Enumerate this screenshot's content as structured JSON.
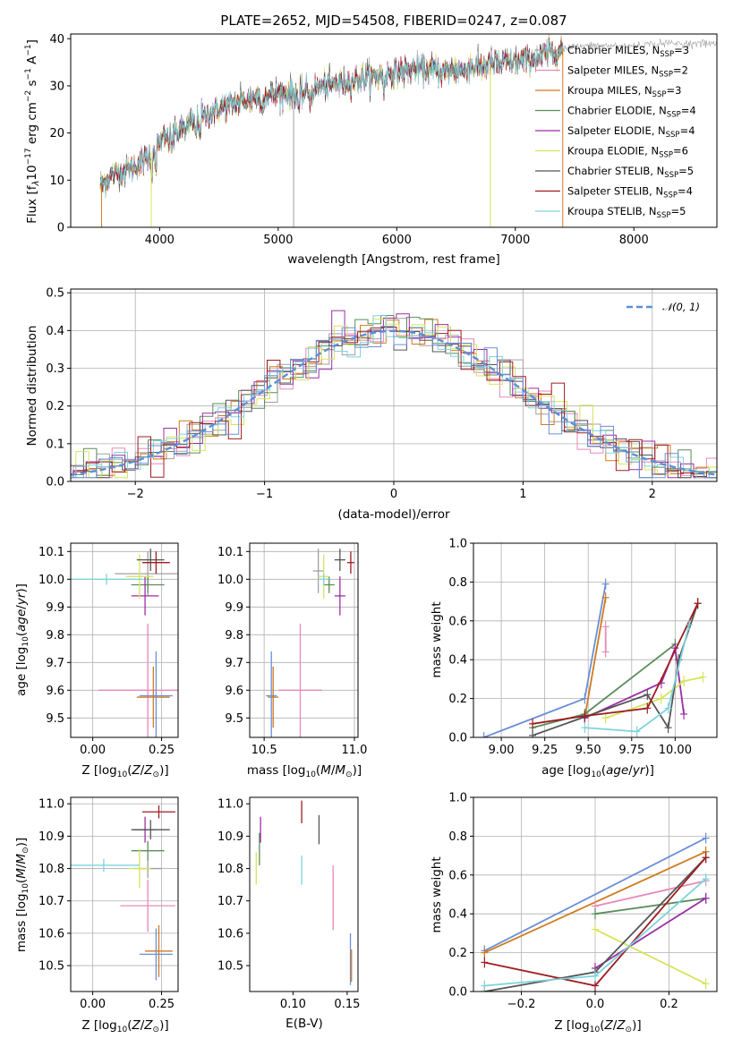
{
  "chart_data": [
    {
      "id": "spectrum",
      "type": "line",
      "title": "PLATE=2652, MJD=54508, FIBERID=0247, z=0.087",
      "xlabel": "wavelength [Angstrom, rest frame]",
      "ylabel": "Flux [f_λ10^-17 erg cm^-2 s^-1 A^-1]",
      "xlim": [
        3250,
        8700
      ],
      "ylim": [
        0,
        41
      ],
      "xticks": [
        4000,
        5000,
        6000,
        7000,
        8000
      ],
      "yticks": [
        0,
        10,
        20,
        30,
        40
      ],
      "grid": false,
      "legend_position": "top-right",
      "series": [
        {
          "name": "Chabrier MILES, N_SSP=3",
          "color": "#a0a0a0"
        },
        {
          "name": "Salpeter MILES, N_SSP=2",
          "color": "#e889b9"
        },
        {
          "name": "Kroupa MILES, N_SSP=3",
          "color": "#d07a1e"
        },
        {
          "name": "Chabrier ELODIE, N_SSP=4",
          "color": "#5b8c5b"
        },
        {
          "name": "Salpeter ELODIE, N_SSP=4",
          "color": "#9b2ea6"
        },
        {
          "name": "Kroupa ELODIE, N_SSP=6",
          "color": "#d5e45a"
        },
        {
          "name": "Chabrier STELIB, N_SSP=5",
          "color": "#555555"
        },
        {
          "name": "Salpeter STELIB, N_SSP=4",
          "color": "#a01c20"
        },
        {
          "name": "Kroupa STELIB, N_SSP=5",
          "color": "#7dd3dc"
        }
      ],
      "continuum_x": [
        3500,
        3600,
        3700,
        3800,
        3900,
        4000,
        4200,
        4400,
        4600,
        4800,
        5000,
        5200,
        5400,
        5600,
        5800,
        6000,
        6200,
        6400,
        6600,
        6800,
        7000,
        7200,
        7400,
        7600,
        7800,
        8000,
        8200,
        8400,
        8700
      ],
      "continuum_y": [
        9,
        11,
        12,
        13,
        15,
        18,
        21,
        24,
        26,
        27.5,
        28.5,
        28.5,
        30,
        31,
        32,
        33,
        33.5,
        33,
        34,
        34.5,
        35,
        36,
        38,
        38.5,
        38.5,
        38.5,
        39,
        39,
        39
      ]
    },
    {
      "id": "residuals",
      "type": "line",
      "xlabel": "(data-model)/error",
      "ylabel": "Normed distribution",
      "xlim": [
        -2.5,
        2.5
      ],
      "ylim": [
        0,
        0.51
      ],
      "xticks": [
        -2,
        -1,
        0,
        1,
        2
      ],
      "xtick_labels": [
        "−2",
        "−1",
        "0",
        "1",
        "2"
      ],
      "yticks": [
        0.0,
        0.1,
        0.2,
        0.3,
        0.4,
        0.5
      ],
      "ytick_labels": [
        "0.0",
        "0.1",
        "0.2",
        "0.3",
        "0.4",
        "0.5"
      ],
      "grid": true,
      "legend_position": "top-right",
      "reference_curve": {
        "name": "𝒩(0, 1)",
        "color": "#5b8fd6",
        "style": "dashed"
      },
      "bin_width": 0.1,
      "series_colors": [
        "#a0a0a0",
        "#e889b9",
        "#d07a1e",
        "#5b8c5b",
        "#9b2ea6",
        "#d5e45a",
        "#555555",
        "#a01c20",
        "#7dd3dc",
        "#6a8fd6"
      ]
    },
    {
      "id": "age-vs-Z",
      "type": "scatter",
      "xlabel": "Z [log10(Z/Z⊙)]",
      "ylabel": "age  [log10(age/yr)]",
      "xlim": [
        -0.08,
        0.31
      ],
      "ylim": [
        9.43,
        10.13
      ],
      "xticks": [
        0.0,
        0.25
      ],
      "xtick_labels": [
        "0.00",
        "0.25"
      ],
      "yticks": [
        9.5,
        9.6,
        9.7,
        9.8,
        9.9,
        10.0,
        10.1
      ],
      "ytick_labels": [
        "9.5",
        "9.6",
        "9.7",
        "9.8",
        "9.9",
        "10.0",
        "10.1"
      ],
      "grid": true,
      "points": [
        {
          "x": 0.2,
          "y": 10.02,
          "xerr": 0.12,
          "yerr": 0.08,
          "color": "#a0a0a0"
        },
        {
          "x": 0.2,
          "y": 9.6,
          "xerr": 0.18,
          "yerr": 0.24,
          "color": "#e889b9"
        },
        {
          "x": 0.22,
          "y": 9.575,
          "xerr": 0.06,
          "yerr": 0.11,
          "color": "#d07a1e"
        },
        {
          "x": 0.2,
          "y": 9.98,
          "xerr": 0.06,
          "yerr": 0.03,
          "color": "#5b8c5b"
        },
        {
          "x": 0.19,
          "y": 9.94,
          "xerr": 0.05,
          "yerr": 0.07,
          "color": "#9b2ea6"
        },
        {
          "x": 0.17,
          "y": 10.01,
          "xerr": 0.05,
          "yerr": 0.08,
          "color": "#d5e45a"
        },
        {
          "x": 0.21,
          "y": 10.07,
          "xerr": 0.05,
          "yerr": 0.04,
          "color": "#555555"
        },
        {
          "x": 0.23,
          "y": 10.06,
          "xerr": 0.05,
          "yerr": 0.04,
          "color": "#a01c20"
        },
        {
          "x": 0.05,
          "y": 10.0,
          "xerr": 0.13,
          "yerr": 0.02,
          "color": "#7dd3dc"
        },
        {
          "x": 0.23,
          "y": 9.58,
          "xerr": 0.06,
          "yerr": 0.16,
          "color": "#6a8fd6"
        }
      ]
    },
    {
      "id": "age-vs-mass",
      "type": "scatter",
      "xlabel": "mass [log10(M/M⊙)]",
      "xlim": [
        10.42,
        11.02
      ],
      "ylim": [
        9.43,
        10.13
      ],
      "xticks": [
        10.5,
        11.0
      ],
      "xtick_labels": [
        "10.5",
        "11.0"
      ],
      "yticks": [
        9.5,
        9.6,
        9.7,
        9.8,
        9.9,
        10.0,
        10.1
      ],
      "ytick_labels": [
        "9.5",
        "9.6",
        "9.7",
        "9.8",
        "9.9",
        "10.0",
        "10.1"
      ],
      "grid": true,
      "points": [
        {
          "x": 10.8,
          "y": 10.03,
          "xerr": 0.03,
          "yerr": 0.08,
          "color": "#a0a0a0"
        },
        {
          "x": 10.7,
          "y": 9.6,
          "xerr": 0.12,
          "yerr": 0.24,
          "color": "#e889b9"
        },
        {
          "x": 10.55,
          "y": 9.575,
          "xerr": 0.03,
          "yerr": 0.11,
          "color": "#d07a1e"
        },
        {
          "x": 10.86,
          "y": 9.98,
          "xerr": 0.03,
          "yerr": 0.03,
          "color": "#5b8c5b"
        },
        {
          "x": 10.92,
          "y": 9.94,
          "xerr": 0.03,
          "yerr": 0.07,
          "color": "#9b2ea6"
        },
        {
          "x": 10.83,
          "y": 10.01,
          "xerr": 0.03,
          "yerr": 0.08,
          "color": "#d5e45a"
        },
        {
          "x": 10.92,
          "y": 10.07,
          "xerr": 0.03,
          "yerr": 0.04,
          "color": "#555555"
        },
        {
          "x": 10.98,
          "y": 10.06,
          "xerr": 0.02,
          "yerr": 0.04,
          "color": "#a01c20"
        },
        {
          "x": 10.83,
          "y": 10.0,
          "xerr": 0.03,
          "yerr": 0.02,
          "color": "#7dd3dc"
        },
        {
          "x": 10.54,
          "y": 9.58,
          "xerr": 0.03,
          "yerr": 0.16,
          "color": "#6a8fd6"
        }
      ]
    },
    {
      "id": "massweight-vs-age",
      "type": "line",
      "xlabel": "age  [log10(age/yr)]",
      "ylabel": "mass weight",
      "xlim": [
        8.84,
        10.24
      ],
      "ylim": [
        0.0,
        1.0
      ],
      "xticks": [
        9.0,
        9.25,
        9.5,
        9.75,
        10.0
      ],
      "xtick_labels": [
        "9.00",
        "9.25",
        "9.50",
        "9.75",
        "10.00"
      ],
      "yticks": [
        0.0,
        0.2,
        0.4,
        0.6,
        0.8,
        1.0
      ],
      "ytick_labels": [
        "0.0",
        "0.2",
        "0.4",
        "0.6",
        "0.8",
        "1.0"
      ],
      "grid": true,
      "series": [
        {
          "color": "#6a8fd6",
          "points": [
            [
              8.9,
              0.0
            ],
            [
              9.48,
              0.2
            ],
            [
              9.6,
              0.79
            ]
          ]
        },
        {
          "color": "#d07a1e",
          "points": [
            [
              9.48,
              0.1
            ],
            [
              9.6,
              0.72
            ]
          ]
        },
        {
          "color": "#e889b9",
          "points": [
            [
              9.6,
              0.44
            ],
            [
              9.6,
              0.57
            ]
          ]
        },
        {
          "color": "#5b8c5b",
          "points": [
            [
              9.18,
              0.05
            ],
            [
              9.48,
              0.12
            ],
            [
              10.0,
              0.48
            ]
          ]
        },
        {
          "color": "#9b2ea6",
          "points": [
            [
              9.48,
              0.1
            ],
            [
              9.92,
              0.28
            ],
            [
              10.0,
              0.46
            ],
            [
              10.05,
              0.12
            ]
          ]
        },
        {
          "color": "#d5e45a",
          "points": [
            [
              9.6,
              0.1
            ],
            [
              9.92,
              0.2
            ],
            [
              10.05,
              0.29
            ],
            [
              10.16,
              0.31
            ]
          ]
        },
        {
          "color": "#555555",
          "points": [
            [
              9.18,
              0.01
            ],
            [
              9.84,
              0.22
            ],
            [
              9.96,
              0.05
            ],
            [
              10.02,
              0.4
            ],
            [
              10.13,
              0.69
            ]
          ]
        },
        {
          "color": "#a01c20",
          "points": [
            [
              9.18,
              0.07
            ],
            [
              9.48,
              0.11
            ],
            [
              9.84,
              0.15
            ],
            [
              10.13,
              0.69
            ]
          ]
        },
        {
          "color": "#7dd3dc",
          "points": [
            [
              9.48,
              0.05
            ],
            [
              9.78,
              0.03
            ],
            [
              9.96,
              0.15
            ],
            [
              10.08,
              0.58
            ]
          ]
        }
      ]
    },
    {
      "id": "mass-vs-Z",
      "type": "scatter",
      "xlabel": "Z [log10(Z/Z⊙)]",
      "ylabel": "mass [log10(M/M⊙)]",
      "xlim": [
        -0.08,
        0.31
      ],
      "ylim": [
        10.42,
        11.02
      ],
      "xticks": [
        0.0,
        0.25
      ],
      "xtick_labels": [
        "0.00",
        "0.25"
      ],
      "yticks": [
        10.5,
        10.6,
        10.7,
        10.8,
        10.9,
        11.0
      ],
      "ytick_labels": [
        "10.5",
        "10.6",
        "10.7",
        "10.8",
        "10.9",
        "11.0"
      ],
      "grid": true,
      "points": [
        {
          "x": 0.2,
          "y": 10.8,
          "xerr": 0.05,
          "yerr": 0.03,
          "color": "#a0a0a0"
        },
        {
          "x": 0.2,
          "y": 10.685,
          "xerr": 0.1,
          "yerr": 0.08,
          "color": "#e889b9"
        },
        {
          "x": 0.24,
          "y": 10.545,
          "xerr": 0.05,
          "yerr": 0.08,
          "color": "#d07a1e"
        },
        {
          "x": 0.2,
          "y": 10.855,
          "xerr": 0.06,
          "yerr": 0.03,
          "color": "#5b8c5b"
        },
        {
          "x": 0.19,
          "y": 10.92,
          "xerr": 0.04,
          "yerr": 0.04,
          "color": "#9b2ea6"
        },
        {
          "x": 0.17,
          "y": 10.8,
          "xerr": 0.04,
          "yerr": 0.06,
          "color": "#d5e45a"
        },
        {
          "x": 0.21,
          "y": 10.92,
          "xerr": 0.07,
          "yerr": 0.03,
          "color": "#555555"
        },
        {
          "x": 0.24,
          "y": 10.975,
          "xerr": 0.06,
          "yerr": 0.02,
          "color": "#a01c20"
        },
        {
          "x": 0.04,
          "y": 10.81,
          "xerr": 0.13,
          "yerr": 0.02,
          "color": "#7dd3dc"
        },
        {
          "x": 0.23,
          "y": 10.535,
          "xerr": 0.06,
          "yerr": 0.08,
          "color": "#6a8fd6"
        }
      ]
    },
    {
      "id": "mass-vs-ebv",
      "type": "scatter",
      "xlabel": "E(B-V)",
      "xlim": [
        0.06,
        0.16
      ],
      "ylim": [
        10.42,
        11.02
      ],
      "xticks": [
        0.1,
        0.15
      ],
      "xtick_labels": [
        "0.10",
        "0.15"
      ],
      "yticks": [
        10.5,
        10.6,
        10.7,
        10.8,
        10.9,
        11.0
      ],
      "ytick_labels": [
        "10.5",
        "10.6",
        "10.7",
        "10.8",
        "10.9",
        "11.0"
      ],
      "grid": false,
      "points": [
        {
          "x": 0.066,
          "y": 10.8,
          "xerr": 0.0,
          "yerr": 0.05,
          "color": "#d5e45a"
        },
        {
          "x": 0.069,
          "y": 10.86,
          "xerr": 0.0,
          "yerr": 0.05,
          "color": "#5b8c5b"
        },
        {
          "x": 0.07,
          "y": 10.92,
          "xerr": 0.0,
          "yerr": 0.04,
          "color": "#9b2ea6"
        },
        {
          "x": 0.108,
          "y": 10.975,
          "xerr": 0.0,
          "yerr": 0.035,
          "color": "#a01c20"
        },
        {
          "x": 0.108,
          "y": 10.795,
          "xerr": 0.0,
          "yerr": 0.045,
          "color": "#7dd3dc"
        },
        {
          "x": 0.124,
          "y": 10.92,
          "xerr": 0.0,
          "yerr": 0.045,
          "color": "#555555"
        },
        {
          "x": 0.137,
          "y": 10.71,
          "xerr": 0.0,
          "yerr": 0.1,
          "color": "#e889b9"
        },
        {
          "x": 0.153,
          "y": 10.52,
          "xerr": 0.0,
          "yerr": 0.08,
          "color": "#6a8fd6"
        },
        {
          "x": 0.154,
          "y": 10.5,
          "xerr": 0.0,
          "yerr": 0.05,
          "color": "#d07a1e"
        }
      ]
    },
    {
      "id": "massweight-vs-Z",
      "type": "line",
      "xlabel": "Z [log10(Z/Z⊙)]",
      "ylabel": "mass weight",
      "xlim": [
        -0.33,
        0.33
      ],
      "ylim": [
        0.0,
        1.0
      ],
      "xticks": [
        -0.2,
        0.0,
        0.2
      ],
      "xtick_labels": [
        "−0.2",
        "0.0",
        "0.2"
      ],
      "yticks": [
        0.0,
        0.2,
        0.4,
        0.6,
        0.8,
        1.0
      ],
      "ytick_labels": [
        "0.0",
        "0.2",
        "0.4",
        "0.6",
        "0.8",
        "1.0"
      ],
      "grid": true,
      "series": [
        {
          "color": "#6a8fd6",
          "points": [
            [
              -0.3,
              0.21
            ],
            [
              0.3,
              0.79
            ]
          ]
        },
        {
          "color": "#d07a1e",
          "points": [
            [
              -0.3,
              0.2
            ],
            [
              0.3,
              0.72
            ]
          ]
        },
        {
          "color": "#e889b9",
          "points": [
            [
              0.0,
              0.44
            ],
            [
              0.3,
              0.57
            ]
          ]
        },
        {
          "color": "#5b8c5b",
          "points": [
            [
              0.0,
              0.4
            ],
            [
              0.3,
              0.48
            ]
          ]
        },
        {
          "color": "#9b2ea6",
          "points": [
            [
              0.0,
              0.12
            ],
            [
              0.3,
              0.48
            ]
          ]
        },
        {
          "color": "#d5e45a",
          "points": [
            [
              0.0,
              0.32
            ],
            [
              0.3,
              0.04
            ]
          ]
        },
        {
          "color": "#555555",
          "points": [
            [
              -0.3,
              0.0
            ],
            [
              0.0,
              0.1
            ],
            [
              0.3,
              0.69
            ]
          ]
        },
        {
          "color": "#a01c20",
          "points": [
            [
              -0.3,
              0.15
            ],
            [
              0.0,
              0.03
            ],
            [
              0.3,
              0.69
            ]
          ]
        },
        {
          "color": "#7dd3dc",
          "points": [
            [
              -0.3,
              0.03
            ],
            [
              0.0,
              0.08
            ],
            [
              0.3,
              0.58
            ]
          ]
        }
      ]
    }
  ]
}
